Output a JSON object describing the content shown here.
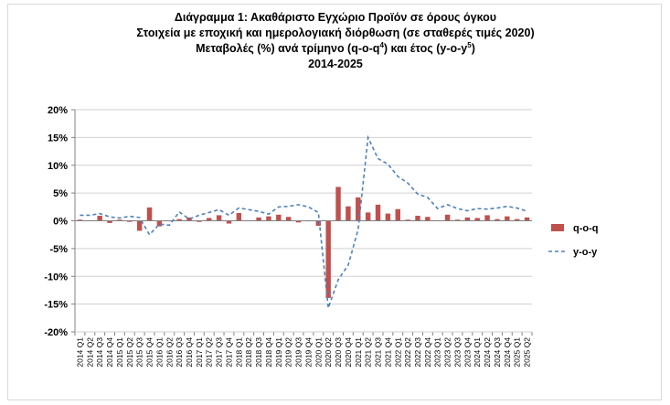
{
  "chart_data": {
    "type": "bar",
    "title_line1": "Διάγραμμα 1: Ακαθάριστο Εγχώριο Προϊόν σε όρους όγκου",
    "title_line2": "Στοιχεία με εποχική και ημερολογιακή διόρθωση (σε σταθερές τιμές 2020)",
    "title_line3_a": "Μεταβολές (%) ανά τρίμηνο (q-o-q",
    "title_line3_sup1": "4",
    "title_line3_b": ") και έτος (y-o-y",
    "title_line3_sup2": "5",
    "title_line3_c": ")",
    "title_line4": "2014-2025",
    "ylim": [
      -20,
      20
    ],
    "yticks": [
      "20%",
      "15%",
      "10%",
      "5%",
      "0%",
      "-5%",
      "-10%",
      "-15%",
      "-20%"
    ],
    "grid": "horizontal",
    "legend_position": "right",
    "categories": [
      "2014 Q1",
      "2014 Q2",
      "2014 Q3",
      "2014 Q4",
      "2015 Q1",
      "2015 Q2",
      "2015 Q3",
      "2015 Q4",
      "2016 Q1",
      "2016 Q2",
      "2016 Q3",
      "2016 Q4",
      "2017 Q1",
      "2017 Q2",
      "2017 Q3",
      "2017 Q4",
      "2018 Q1",
      "2018 Q2",
      "2018 Q3",
      "2018 Q4",
      "2019 Q1",
      "2019 Q2",
      "2019 Q3",
      "2019 Q4",
      "2020 Q1",
      "2020 Q2",
      "2020 Q3",
      "2020 Q4",
      "2021 Q1",
      "2021 Q2",
      "2021 Q3",
      "2021 Q4",
      "2022 Q1",
      "2022 Q2",
      "2022 Q3",
      "2022 Q4",
      "2023 Q1",
      "2023 Q2",
      "2023 Q3",
      "2023 Q4",
      "2024 Q1",
      "2024 Q2",
      "2024 Q3",
      "2024 Q4",
      "2025 Q1",
      "2025 Q2"
    ],
    "series": [
      {
        "name": "q-o-q",
        "type": "bar",
        "color": "#c0504d",
        "values": [
          0.2,
          0.1,
          0.9,
          -0.4,
          0.2,
          -0.2,
          -1.8,
          2.4,
          -1.0,
          -0.1,
          0.3,
          0.6,
          -0.2,
          0.5,
          1.0,
          -0.5,
          1.4,
          0.1,
          0.6,
          0.8,
          1.1,
          0.7,
          -0.3,
          0.0,
          -0.9,
          -13.9,
          6.1,
          2.6,
          4.2,
          1.5,
          2.9,
          1.3,
          2.1,
          0.2,
          0.9,
          0.7,
          0.1,
          1.1,
          0.2,
          0.6,
          0.5,
          1.0,
          0.3,
          0.8,
          0.3,
          0.6
        ]
      },
      {
        "name": "y-o-y",
        "type": "line",
        "color": "#4f81bd",
        "dash": "dashed",
        "values": [
          1.0,
          1.0,
          1.3,
          0.7,
          0.5,
          0.8,
          0.6,
          -2.5,
          -0.6,
          -0.8,
          1.6,
          0.3,
          1.0,
          1.5,
          2.0,
          1.0,
          2.3,
          2.0,
          1.7,
          1.2,
          2.5,
          2.6,
          2.9,
          2.5,
          1.5,
          -15.7,
          -10.6,
          -8.0,
          -1.6,
          15.0,
          11.2,
          10.2,
          8.0,
          6.8,
          4.8,
          4.2,
          2.2,
          2.9,
          2.2,
          1.8,
          2.2,
          2.1,
          2.3,
          2.6,
          2.3,
          1.7
        ]
      }
    ]
  }
}
